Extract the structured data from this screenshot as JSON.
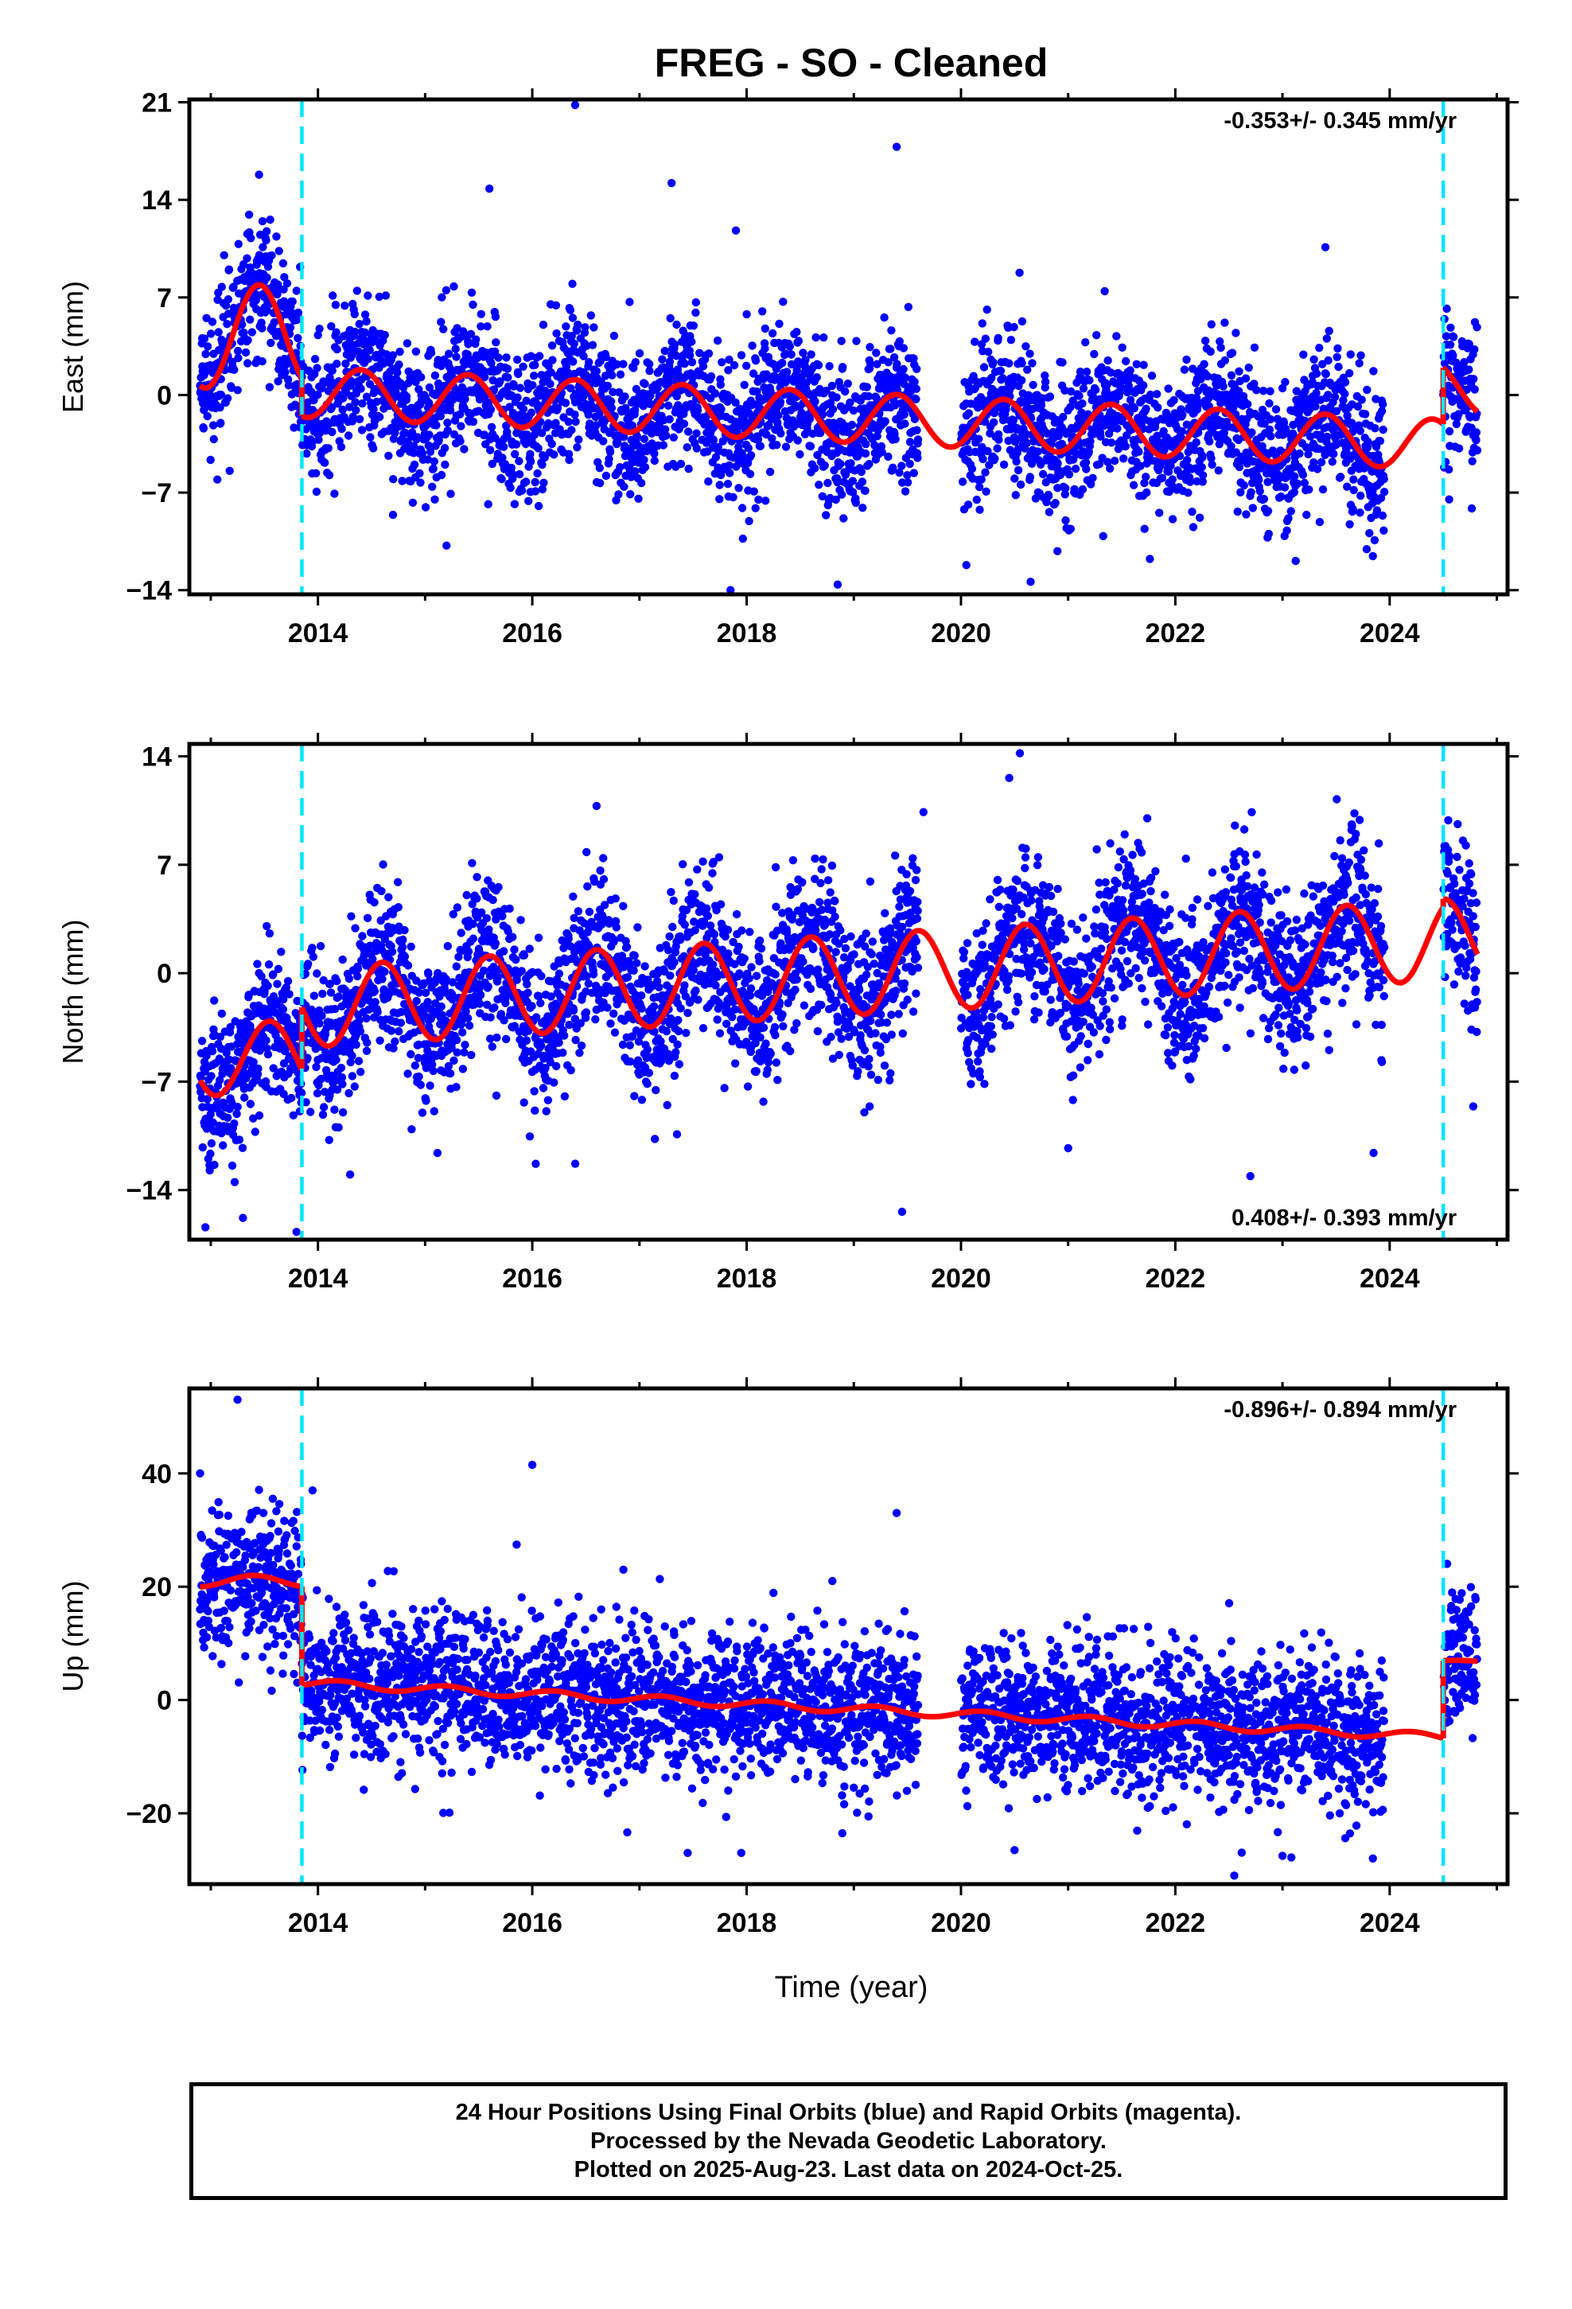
{
  "title": "FREG  - SO - Cleaned",
  "xlabel": "Time (year)",
  "colors": {
    "points": "#0000ff",
    "model": "#ff0000",
    "breaks": "#00e5ff",
    "axes": "#000000"
  },
  "footer": {
    "line1": "24 Hour Positions Using Final Orbits (blue) and Rapid Orbits (magenta).",
    "line2": "Processed by the Nevada Geodetic Laboratory.",
    "line3": "Plotted on 2025-Aug-23. Last data on 2024-Oct-25."
  },
  "chart_data": [
    {
      "type": "scatter",
      "panel": "east",
      "ylabel": "East (mm)",
      "rate": "-0.353+/- 0.345 mm/yr",
      "rate_position": "top-right",
      "xlim": [
        2012.8,
        2025.1
      ],
      "ylim": [
        -14.3,
        21.2
      ],
      "yticks": [
        -14,
        -7,
        0,
        7,
        14,
        21
      ],
      "ytick_labels": [
        "−14",
        "−7",
        "0",
        "7",
        "14",
        "21"
      ],
      "xticks": [
        2014,
        2016,
        2018,
        2020,
        2022,
        2024
      ],
      "breaks": [
        2013.85,
        2024.5
      ],
      "model_segments": [
        {
          "x_range": [
            2012.9,
            2013.85
          ],
          "offset": 4.2,
          "trend": 0,
          "amp": 3.7,
          "phase_year": 2013.45
        },
        {
          "x_range": [
            2013.85,
            2024.5
          ],
          "offset": 0.2,
          "trend": -0.353,
          "amp": 1.8,
          "phase_year": 2014.4
        },
        {
          "x_range": [
            2024.5,
            2024.82
          ],
          "offset": 0.5,
          "trend": -0.353,
          "amp": 1.8,
          "phase_year": 2024.4
        }
      ],
      "scatter_sd": 2.6,
      "outliers": [
        [
          2016.4,
          20.8
        ],
        [
          2019.4,
          17.8
        ],
        [
          2013.45,
          15.8
        ],
        [
          2017.3,
          15.2
        ],
        [
          2015.6,
          14.8
        ],
        [
          2017.9,
          11.8
        ],
        [
          2023.4,
          10.6
        ],
        [
          2015.2,
          -10.8
        ],
        [
          2017.85,
          -14.0
        ],
        [
          2020.05,
          -12.2
        ],
        [
          2020.65,
          -13.4
        ],
        [
          2020.9,
          -11.2
        ],
        [
          2018.85,
          -13.6
        ],
        [
          2014.7,
          -8.6
        ]
      ]
    },
    {
      "type": "scatter",
      "panel": "north",
      "ylabel": "North (mm)",
      "rate": "0.408+/- 0.393 mm/yr",
      "rate_position": "bottom-right",
      "xlim": [
        2012.8,
        2025.1
      ],
      "ylim": [
        -17.2,
        14.8
      ],
      "yticks": [
        -14,
        -7,
        0,
        7,
        14
      ],
      "ytick_labels": [
        "−14",
        "−7",
        "0",
        "7",
        "14"
      ],
      "xticks": [
        2014,
        2016,
        2018,
        2020,
        2022,
        2024
      ],
      "breaks": [
        2013.85,
        2024.5
      ],
      "model_segments": [
        {
          "x_range": [
            2012.9,
            2013.85
          ],
          "offset": -5.5,
          "trend": 0,
          "amp": 2.4,
          "phase_year": 2013.55
        },
        {
          "x_range": [
            2013.85,
            2024.5
          ],
          "offset": -2.2,
          "trend": 0.408,
          "amp": 2.6,
          "phase_year": 2014.6
        },
        {
          "x_range": [
            2024.5,
            2024.82
          ],
          "offset": 2.2,
          "trend": 0.408,
          "amp": 2.6,
          "phase_year": 2024.5
        }
      ],
      "scatter_sd": 2.5,
      "outliers": [
        [
          2012.95,
          -16.4
        ],
        [
          2013.3,
          -15.8
        ],
        [
          2013.8,
          -16.7
        ],
        [
          2019.45,
          -15.4
        ],
        [
          2016.4,
          -12.3
        ],
        [
          2022.7,
          -13.1
        ],
        [
          2023.85,
          -11.6
        ],
        [
          2021.0,
          -11.3
        ],
        [
          2017.35,
          -10.4
        ],
        [
          2014.3,
          -13.0
        ],
        [
          2020.55,
          14.2
        ],
        [
          2020.45,
          12.6
        ],
        [
          2016.6,
          10.8
        ],
        [
          2019.65,
          10.4
        ],
        [
          2024.55,
          7.2
        ],
        [
          2024.78,
          -8.6
        ]
      ]
    },
    {
      "type": "scatter",
      "panel": "up",
      "ylabel": "Up (mm)",
      "rate": "-0.896+/- 0.894 mm/yr",
      "rate_position": "top-right",
      "xlim": [
        2012.8,
        2025.1
      ],
      "ylim": [
        -32.5,
        55.0
      ],
      "yticks": [
        -20,
        0,
        20,
        40
      ],
      "ytick_labels": [
        "−20",
        "0",
        "20",
        "40"
      ],
      "xticks": [
        2014,
        2016,
        2018,
        2020,
        2022,
        2024
      ],
      "breaks": [
        2013.85,
        2024.5
      ],
      "model_segments": [
        {
          "x_range": [
            2012.9,
            2013.85
          ],
          "offset": 21.0,
          "trend": 0,
          "amp": 1.0,
          "phase_year": 2013.4
        },
        {
          "x_range": [
            2013.85,
            2024.5
          ],
          "offset": 3.0,
          "trend": -0.896,
          "amp": 0.7,
          "phase_year": 2014.2
        },
        {
          "x_range": [
            2024.5,
            2024.82
          ],
          "offset": 6.8,
          "trend": 0,
          "amp": 0.2,
          "phase_year": 2024.6
        }
      ],
      "scatter_sd": 6.5,
      "outliers": [
        [
          2013.25,
          53.0
        ],
        [
          2016.0,
          41.5
        ],
        [
          2019.4,
          33.0
        ],
        [
          2012.9,
          40.0
        ],
        [
          2013.95,
          37.0
        ],
        [
          2017.95,
          -27.0
        ],
        [
          2017.45,
          -27.0
        ],
        [
          2022.55,
          -31.0
        ],
        [
          2023.0,
          -27.5
        ],
        [
          2020.5,
          -26.5
        ],
        [
          2016.85,
          23.0
        ],
        [
          2018.8,
          21.0
        ]
      ]
    }
  ]
}
